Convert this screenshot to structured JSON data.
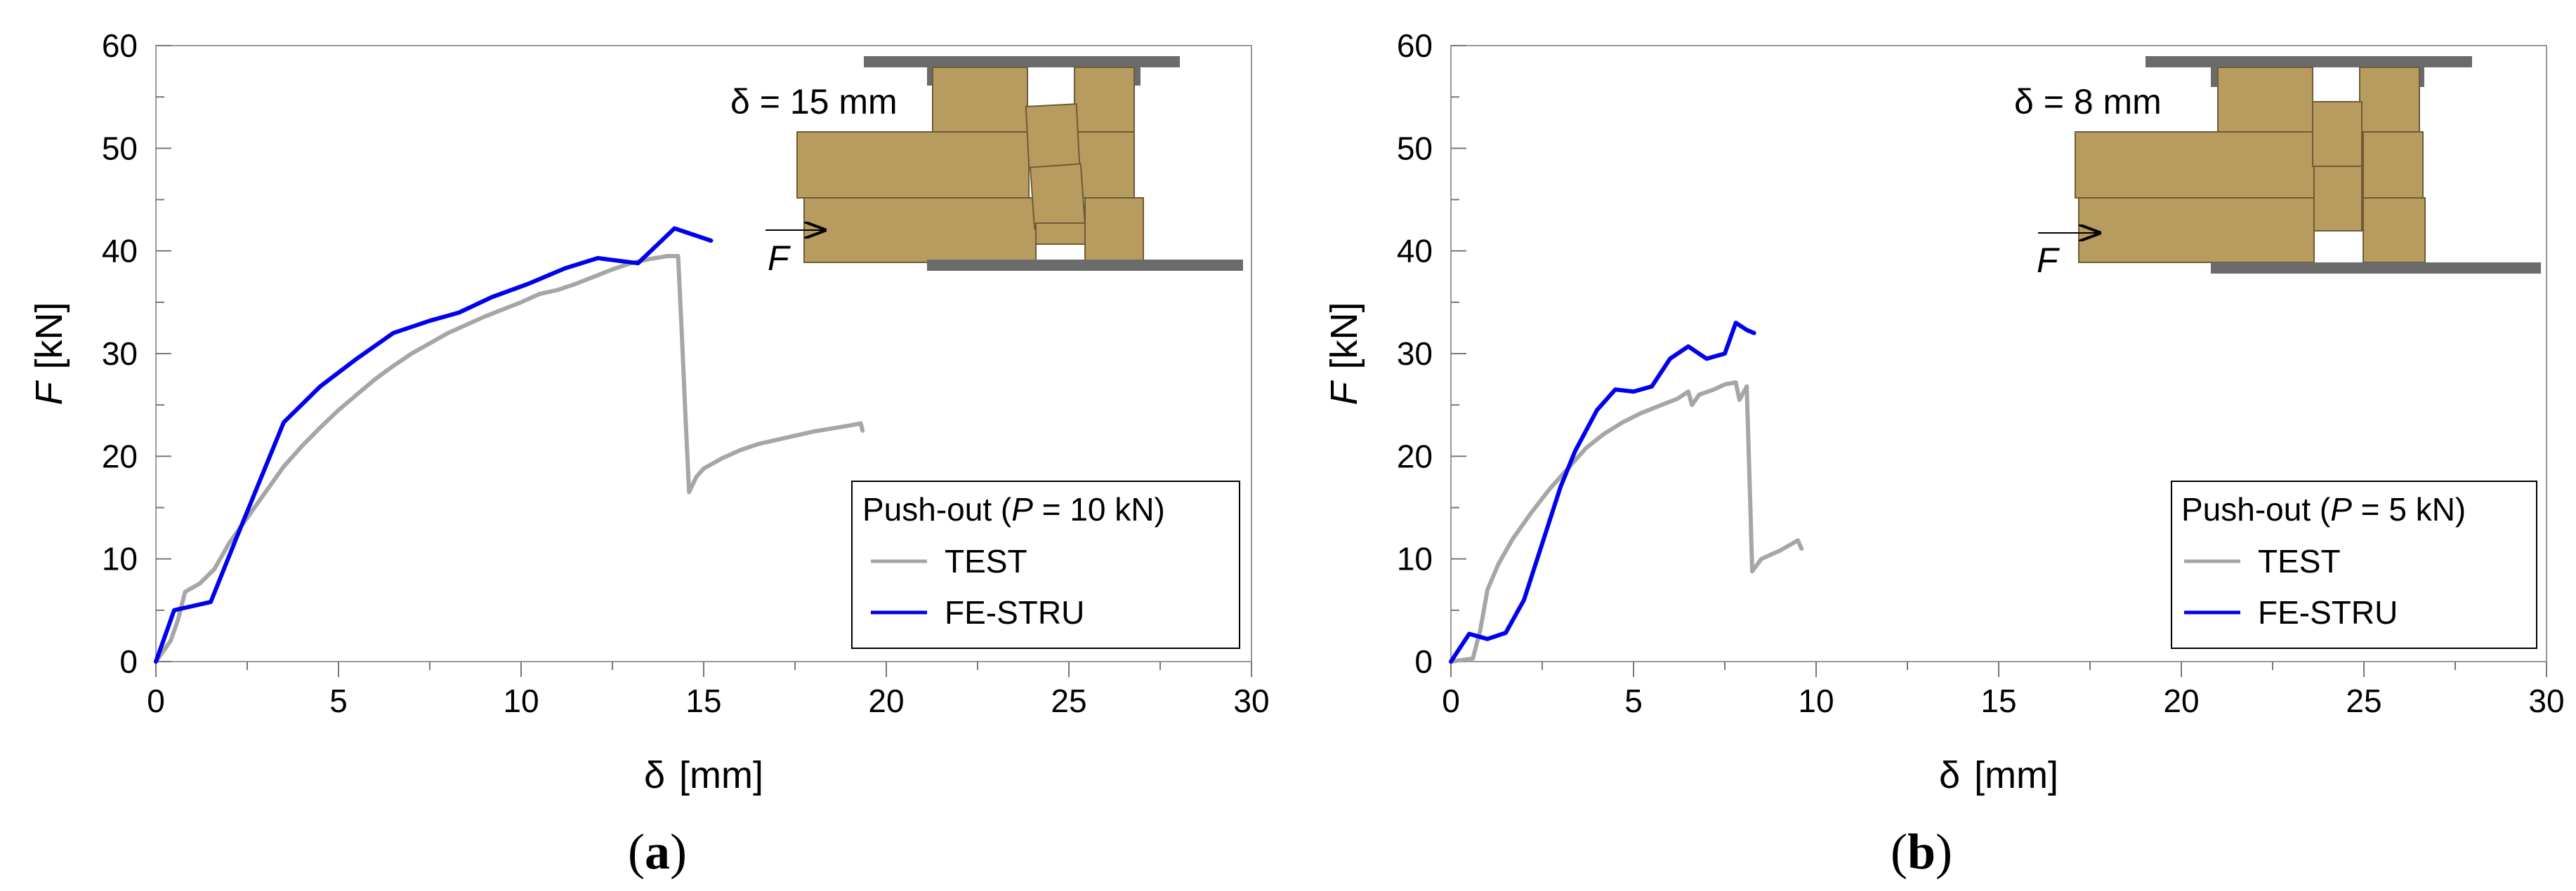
{
  "chart_data": [
    {
      "type": "line",
      "panel_label": "a",
      "xlabel_symbol": "δ",
      "xlabel_unit": "[mm]",
      "ylabel_symbol": "F",
      "ylabel_unit": "[kN]",
      "xlim": [
        0,
        30
      ],
      "ylim": [
        0,
        60
      ],
      "xticks": [
        0,
        5,
        10,
        15,
        20,
        25,
        30
      ],
      "yticks": [
        0,
        10,
        20,
        30,
        40,
        50,
        60
      ],
      "grid": false,
      "legend": {
        "position": "bottom-right",
        "title_prefix": "Push-out (",
        "title_var": "P",
        "title_suffix": " = 10 kN)"
      },
      "inset": {
        "delta_label": "δ = 15 mm",
        "force_label": "F"
      },
      "series": [
        {
          "name": "TEST",
          "color": "#a6a6a6",
          "points": [
            [
              0,
              0
            ],
            [
              0.4,
              2
            ],
            [
              0.6,
              4
            ],
            [
              0.8,
              6.8
            ],
            [
              1.2,
              7.6
            ],
            [
              1.6,
              9
            ],
            [
              2,
              11.5
            ],
            [
              2.5,
              14
            ],
            [
              3,
              16.5
            ],
            [
              3.5,
              19
            ],
            [
              4,
              21
            ],
            [
              4.5,
              22.8
            ],
            [
              5,
              24.5
            ],
            [
              5.5,
              26
            ],
            [
              6,
              27.5
            ],
            [
              6.5,
              28.8
            ],
            [
              7,
              30
            ],
            [
              7.5,
              31
            ],
            [
              8,
              32
            ],
            [
              8.5,
              32.8
            ],
            [
              9,
              33.6
            ],
            [
              9.5,
              34.3
            ],
            [
              10,
              35
            ],
            [
              10.5,
              35.8
            ],
            [
              11,
              36.2
            ],
            [
              11.5,
              36.8
            ],
            [
              12,
              37.5
            ],
            [
              12.5,
              38.2
            ],
            [
              13,
              38.8
            ],
            [
              13.5,
              39.2
            ],
            [
              14,
              39.5
            ],
            [
              14.3,
              39.5
            ],
            [
              14.4,
              32
            ],
            [
              14.5,
              24
            ],
            [
              14.6,
              16.5
            ],
            [
              14.8,
              18
            ],
            [
              15,
              18.8
            ],
            [
              15.5,
              19.8
            ],
            [
              16,
              20.6
            ],
            [
              16.5,
              21.2
            ],
            [
              17,
              21.6
            ],
            [
              17.5,
              22
            ],
            [
              18,
              22.4
            ],
            [
              18.5,
              22.7
            ],
            [
              19,
              23
            ],
            [
              19.3,
              23.2
            ],
            [
              19.35,
              22.5
            ]
          ]
        },
        {
          "name": "FE-STRU",
          "color": "#0000ee",
          "points": [
            [
              0,
              0
            ],
            [
              0.5,
              5
            ],
            [
              1.5,
              5.8
            ],
            [
              2.2,
              12
            ],
            [
              3.5,
              23.3
            ],
            [
              4.5,
              26.8
            ],
            [
              5.5,
              29.5
            ],
            [
              6.5,
              32
            ],
            [
              7.5,
              33.2
            ],
            [
              8.3,
              34
            ],
            [
              9.2,
              35.5
            ],
            [
              10.2,
              36.8
            ],
            [
              11.2,
              38.3
            ],
            [
              12.1,
              39.3
            ],
            [
              13.2,
              38.8
            ],
            [
              14.2,
              42.2
            ],
            [
              15.2,
              41
            ]
          ]
        }
      ]
    },
    {
      "type": "line",
      "panel_label": "b",
      "xlabel_symbol": "δ",
      "xlabel_unit": "[mm]",
      "ylabel_symbol": "F",
      "ylabel_unit": "[kN]",
      "xlim": [
        0,
        30
      ],
      "ylim": [
        0,
        60
      ],
      "xticks": [
        0,
        5,
        10,
        15,
        20,
        25,
        30
      ],
      "yticks": [
        0,
        10,
        20,
        30,
        40,
        50,
        60
      ],
      "grid": false,
      "legend": {
        "position": "bottom-right",
        "title_prefix": "Push-out (",
        "title_var": "P",
        "title_suffix": " = 5 kN)"
      },
      "inset": {
        "delta_label": "δ = 8 mm",
        "force_label": "F"
      },
      "series": [
        {
          "name": "TEST",
          "color": "#a6a6a6",
          "points": [
            [
              0,
              0
            ],
            [
              0.6,
              0.3
            ],
            [
              0.8,
              3
            ],
            [
              1,
              7
            ],
            [
              1.3,
              9.5
            ],
            [
              1.7,
              12
            ],
            [
              2.2,
              14.5
            ],
            [
              2.7,
              16.8
            ],
            [
              3.2,
              18.8
            ],
            [
              3.7,
              20.8
            ],
            [
              4.2,
              22.2
            ],
            [
              4.7,
              23.3
            ],
            [
              5.2,
              24.2
            ],
            [
              5.7,
              24.9
            ],
            [
              6.2,
              25.6
            ],
            [
              6.5,
              26.3
            ],
            [
              6.6,
              25
            ],
            [
              6.8,
              26
            ],
            [
              7.2,
              26.5
            ],
            [
              7.5,
              27
            ],
            [
              7.8,
              27.2
            ],
            [
              7.9,
              25.5
            ],
            [
              8.1,
              26.8
            ],
            [
              8.2,
              15
            ],
            [
              8.25,
              8.8
            ],
            [
              8.5,
              10
            ],
            [
              9,
              10.8
            ],
            [
              9.5,
              11.8
            ],
            [
              9.6,
              11
            ]
          ]
        },
        {
          "name": "FE-STRU",
          "color": "#0000ee",
          "points": [
            [
              0,
              0
            ],
            [
              0.5,
              2.7
            ],
            [
              1,
              2.2
            ],
            [
              1.5,
              2.8
            ],
            [
              2,
              6
            ],
            [
              2.5,
              11.5
            ],
            [
              3,
              17
            ],
            [
              3.4,
              20.5
            ],
            [
              4,
              24.5
            ],
            [
              4.5,
              26.5
            ],
            [
              5,
              26.3
            ],
            [
              5.5,
              26.8
            ],
            [
              6,
              29.5
            ],
            [
              6.5,
              30.7
            ],
            [
              7,
              29.5
            ],
            [
              7.5,
              30
            ],
            [
              7.8,
              33
            ],
            [
              8.1,
              32.3
            ],
            [
              8.3,
              32
            ]
          ]
        }
      ]
    }
  ]
}
